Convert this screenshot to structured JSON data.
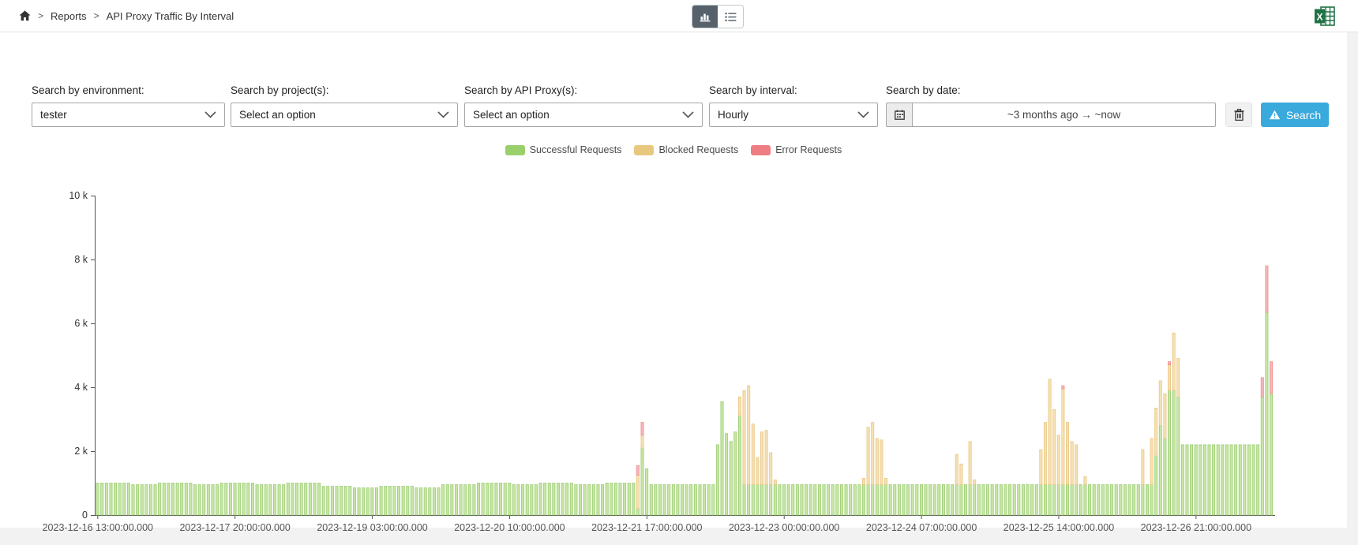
{
  "breadcrumb": {
    "separator": ">",
    "items": [
      "Reports",
      "API Proxy Traffic By Interval"
    ]
  },
  "view_toggle": {
    "active": "chart"
  },
  "filters": {
    "environment": {
      "label": "Search by environment:",
      "value": "tester"
    },
    "projects": {
      "label": "Search by project(s):",
      "value": "Select an option"
    },
    "proxies": {
      "label": "Search by API Proxy(s):",
      "value": "Select an option"
    },
    "interval": {
      "label": "Search by interval:",
      "value": "Hourly"
    },
    "date": {
      "label": "Search by date:",
      "value": "~3 months ago → ~now"
    },
    "search_button": {
      "label": "Search",
      "color": "#3aa9dc"
    }
  },
  "legend": [
    {
      "label": "Successful Requests",
      "color": "#9ad06a"
    },
    {
      "label": "Blocked Requests",
      "color": "#e8c87e"
    },
    {
      "label": "Error Requests",
      "color": "#ee7e84"
    }
  ],
  "chart_data": {
    "type": "bar",
    "stacked": true,
    "title": "API Proxy Traffic By Interval",
    "xlabel": "",
    "ylabel": "",
    "unit": "requests, values in thousands",
    "x_start": "2023-12-16 13:00:00.000",
    "x_interval_hours": 1,
    "ylim": [
      0,
      10000
    ],
    "ytick_labels": [
      "0",
      "2 k",
      "4 k",
      "6 k",
      "8 k",
      "10 k"
    ],
    "xtick_every_n_bars": 31,
    "xtick_labels": [
      "2023-12-16 13:00:00.000",
      "2023-12-17 20:00:00.000",
      "2023-12-19 03:00:00.000",
      "2023-12-20 10:00:00.000",
      "2023-12-21 17:00:00.000",
      "2023-12-23 00:00:00.000",
      "2023-12-24 07:00:00.000",
      "2023-12-25 14:00:00.000",
      "2023-12-26 21:00:00.000"
    ],
    "grid": false,
    "legend_position": "top-center",
    "series_names": [
      "Successful Requests",
      "Blocked Requests",
      "Error Requests"
    ],
    "series_fill": [
      "#c7e6a4",
      "#f6e0b3",
      "#f6b6b8"
    ],
    "series_stroke": [
      "#94c96a",
      "#e7c47e",
      "#ee8a8e"
    ],
    "bars_rle_format": "[count, successful_k, blocked_k, error_k] hourly run-length encoded",
    "bars_rle": [
      [
        8,
        1.0,
        0,
        0
      ],
      [
        6,
        0.95,
        0,
        0
      ],
      [
        8,
        1.0,
        0,
        0
      ],
      [
        6,
        0.95,
        0,
        0
      ],
      [
        8,
        1.0,
        0,
        0
      ],
      [
        7,
        0.95,
        0,
        0
      ],
      [
        8,
        1.0,
        0,
        0
      ],
      [
        7,
        0.9,
        0,
        0
      ],
      [
        6,
        0.85,
        0,
        0
      ],
      [
        8,
        0.9,
        0,
        0
      ],
      [
        6,
        0.85,
        0,
        0
      ],
      [
        8,
        0.95,
        0,
        0
      ],
      [
        8,
        1.0,
        0,
        0
      ],
      [
        6,
        0.95,
        0,
        0
      ],
      [
        8,
        1.0,
        0,
        0
      ],
      [
        7,
        0.95,
        0,
        0
      ],
      [
        7,
        1.0,
        0,
        0
      ],
      [
        1,
        0.2,
        1.05,
        0.3
      ],
      [
        1,
        2.1,
        0.4,
        0.4
      ],
      [
        1,
        1.45,
        0,
        0
      ],
      [
        15,
        0.95,
        0,
        0
      ],
      [
        1,
        2.2,
        0,
        0
      ],
      [
        1,
        3.55,
        0,
        0
      ],
      [
        1,
        2.55,
        0,
        0
      ],
      [
        1,
        2.3,
        0,
        0
      ],
      [
        1,
        2.6,
        0,
        0
      ],
      [
        1,
        3.1,
        0.6,
        0
      ],
      [
        1,
        0.95,
        2.95,
        0
      ],
      [
        1,
        0.95,
        3.1,
        0
      ],
      [
        1,
        0.95,
        1.9,
        0
      ],
      [
        1,
        0.95,
        0.85,
        0
      ],
      [
        1,
        0.95,
        1.65,
        0
      ],
      [
        1,
        0.95,
        1.7,
        0
      ],
      [
        1,
        0.95,
        1.0,
        0
      ],
      [
        1,
        0.95,
        0.15,
        0
      ],
      [
        19,
        0.95,
        0,
        0
      ],
      [
        1,
        0.95,
        0.2,
        0
      ],
      [
        1,
        0.95,
        1.8,
        0
      ],
      [
        1,
        0.95,
        1.95,
        0
      ],
      [
        1,
        0.95,
        1.45,
        0
      ],
      [
        1,
        0.95,
        1.4,
        0
      ],
      [
        1,
        0.95,
        0.2,
        0
      ],
      [
        15,
        0.95,
        0,
        0
      ],
      [
        1,
        0.95,
        0.95,
        0
      ],
      [
        1,
        0.95,
        0.65,
        0
      ],
      [
        1,
        0.95,
        0,
        0
      ],
      [
        1,
        0.95,
        1.35,
        0
      ],
      [
        1,
        0.95,
        0.15,
        0
      ],
      [
        14,
        0.95,
        0,
        0
      ],
      [
        1,
        0.95,
        1.1,
        0
      ],
      [
        1,
        0.95,
        1.95,
        0
      ],
      [
        1,
        0.95,
        3.3,
        0
      ],
      [
        1,
        0.95,
        2.35,
        0
      ],
      [
        1,
        0.95,
        1.55,
        0
      ],
      [
        1,
        0.95,
        3.0,
        0.1
      ],
      [
        1,
        0.95,
        1.95,
        0
      ],
      [
        1,
        0.95,
        1.35,
        0
      ],
      [
        1,
        0.95,
        1.25,
        0
      ],
      [
        1,
        0.95,
        0,
        0
      ],
      [
        1,
        0.95,
        0.25,
        0
      ],
      [
        12,
        0.95,
        0,
        0
      ],
      [
        1,
        0.95,
        1.1,
        0
      ],
      [
        1,
        0.95,
        0,
        0
      ],
      [
        1,
        0.95,
        1.45,
        0
      ],
      [
        1,
        1.85,
        1.5,
        0
      ],
      [
        1,
        2.8,
        1.4,
        0
      ],
      [
        1,
        2.4,
        1.4,
        0
      ],
      [
        1,
        3.9,
        0.8,
        0.1
      ],
      [
        1,
        3.9,
        1.8,
        0
      ],
      [
        1,
        3.7,
        1.2,
        0
      ],
      [
        18,
        2.2,
        0,
        0
      ],
      [
        1,
        3.7,
        0,
        0.6
      ],
      [
        1,
        6.35,
        0,
        1.45
      ],
      [
        1,
        3.8,
        0,
        1.0
      ]
    ]
  }
}
